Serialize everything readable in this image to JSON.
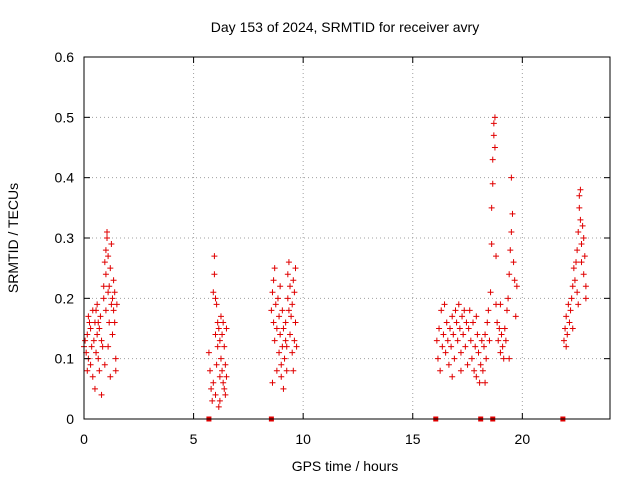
{
  "chart_data": {
    "type": "scatter",
    "title": "Day 153 of 2024, SRMTID for receiver avry",
    "xlabel": "GPS time / hours",
    "ylabel": "SRMTID / TECUs",
    "xlim": [
      0,
      24
    ],
    "ylim": [
      0,
      0.6
    ],
    "x_ticks": [
      0,
      5,
      10,
      15,
      20
    ],
    "x_tick_labels": [
      "0",
      "5",
      "10",
      "15",
      "20"
    ],
    "y_ticks": [
      0,
      0.1,
      0.2,
      0.3,
      0.4,
      0.5,
      0.6
    ],
    "y_tick_labels": [
      "0",
      "0.1",
      "0.2",
      "0.3",
      "0.4",
      "0.5",
      "0.6"
    ],
    "grid": true,
    "marker": "+",
    "color": "#e00000",
    "series": [
      {
        "name": "SRMTID",
        "points": [
          [
            0.0,
            0.12
          ],
          [
            0.05,
            0.13
          ],
          [
            0.1,
            0.11
          ],
          [
            0.15,
            0.14
          ],
          [
            0.2,
            0.1
          ],
          [
            0.2,
            0.17
          ],
          [
            0.25,
            0.16
          ],
          [
            0.3,
            0.09
          ],
          [
            0.3,
            0.15
          ],
          [
            0.35,
            0.12
          ],
          [
            0.4,
            0.18
          ],
          [
            0.4,
            0.07
          ],
          [
            0.45,
            0.13
          ],
          [
            0.5,
            0.16
          ],
          [
            0.5,
            0.05
          ],
          [
            0.55,
            0.11
          ],
          [
            0.6,
            0.14
          ],
          [
            0.6,
            0.19
          ],
          [
            0.65,
            0.1
          ],
          [
            0.7,
            0.15
          ],
          [
            0.7,
            0.08
          ],
          [
            0.75,
            0.17
          ],
          [
            0.8,
            0.13
          ],
          [
            0.8,
            0.04
          ],
          [
            0.85,
            0.12
          ],
          [
            0.9,
            0.2
          ],
          [
            0.9,
            0.22
          ],
          [
            0.95,
            0.26
          ],
          [
            1.0,
            0.28
          ],
          [
            1.0,
            0.18
          ],
          [
            1.0,
            0.24
          ],
          [
            1.05,
            0.3
          ],
          [
            1.05,
            0.31
          ],
          [
            1.1,
            0.27
          ],
          [
            1.1,
            0.21
          ],
          [
            1.15,
            0.16
          ],
          [
            1.15,
            0.22
          ],
          [
            1.2,
            0.25
          ],
          [
            1.2,
            0.07
          ],
          [
            1.25,
            0.19
          ],
          [
            1.25,
            0.29
          ],
          [
            1.3,
            0.2
          ],
          [
            1.3,
            0.14
          ],
          [
            1.35,
            0.18
          ],
          [
            1.35,
            0.23
          ],
          [
            1.4,
            0.16
          ],
          [
            1.4,
            0.21
          ],
          [
            1.45,
            0.1
          ],
          [
            1.45,
            0.08
          ],
          [
            1.5,
            0.19
          ],
          [
            0.15,
            0.08
          ],
          [
            0.55,
            0.18
          ],
          [
            0.65,
            0.16
          ],
          [
            0.95,
            0.09
          ],
          [
            1.1,
            0.12
          ],
          [
            5.7,
            0.11
          ],
          [
            5.75,
            0.08
          ],
          [
            5.8,
            0.05
          ],
          [
            5.85,
            0.03
          ],
          [
            5.9,
            0.06
          ],
          [
            5.9,
            0.21
          ],
          [
            5.95,
            0.27
          ],
          [
            5.95,
            0.24
          ],
          [
            6.0,
            0.14
          ],
          [
            6.0,
            0.04
          ],
          [
            6.05,
            0.19
          ],
          [
            6.05,
            0.09
          ],
          [
            6.1,
            0.16
          ],
          [
            6.1,
            0.12
          ],
          [
            6.15,
            0.15
          ],
          [
            6.15,
            0.02
          ],
          [
            6.2,
            0.13
          ],
          [
            6.2,
            0.07
          ],
          [
            6.25,
            0.17
          ],
          [
            6.25,
            0.1
          ],
          [
            6.3,
            0.08
          ],
          [
            6.3,
            0.14
          ],
          [
            6.35,
            0.06
          ],
          [
            6.35,
            0.16
          ],
          [
            6.4,
            0.05
          ],
          [
            6.4,
            0.12
          ],
          [
            6.45,
            0.04
          ],
          [
            6.45,
            0.09
          ],
          [
            6.5,
            0.07
          ],
          [
            6.5,
            0.15
          ],
          [
            6.0,
            0.2
          ],
          [
            6.2,
            0.03
          ],
          [
            8.55,
            0.18
          ],
          [
            8.6,
            0.21
          ],
          [
            8.6,
            0.06
          ],
          [
            8.65,
            0.23
          ],
          [
            8.65,
            0.16
          ],
          [
            8.7,
            0.25
          ],
          [
            8.7,
            0.13
          ],
          [
            8.75,
            0.19
          ],
          [
            8.8,
            0.15
          ],
          [
            8.8,
            0.08
          ],
          [
            8.85,
            0.2
          ],
          [
            8.9,
            0.11
          ],
          [
            8.9,
            0.17
          ],
          [
            8.95,
            0.14
          ],
          [
            9.0,
            0.09
          ],
          [
            9.0,
            0.07
          ],
          [
            9.05,
            0.12
          ],
          [
            9.05,
            0.18
          ],
          [
            9.1,
            0.05
          ],
          [
            9.1,
            0.15
          ],
          [
            9.15,
            0.1
          ],
          [
            9.2,
            0.13
          ],
          [
            9.2,
            0.16
          ],
          [
            9.25,
            0.12
          ],
          [
            9.3,
            0.2
          ],
          [
            9.3,
            0.24
          ],
          [
            9.35,
            0.26
          ],
          [
            9.35,
            0.18
          ],
          [
            9.4,
            0.22
          ],
          [
            9.4,
            0.14
          ],
          [
            9.45,
            0.17
          ],
          [
            9.5,
            0.19
          ],
          [
            9.5,
            0.11
          ],
          [
            9.55,
            0.08
          ],
          [
            9.55,
            0.23
          ],
          [
            9.6,
            0.13
          ],
          [
            9.65,
            0.16
          ],
          [
            9.6,
            0.21
          ],
          [
            9.65,
            0.25
          ],
          [
            9.7,
            0.12
          ],
          [
            8.95,
            0.22
          ],
          [
            9.25,
            0.08
          ],
          [
            16.1,
            0.13
          ],
          [
            16.15,
            0.1
          ],
          [
            16.2,
            0.15
          ],
          [
            16.25,
            0.08
          ],
          [
            16.3,
            0.18
          ],
          [
            16.35,
            0.12
          ],
          [
            16.4,
            0.14
          ],
          [
            16.45,
            0.19
          ],
          [
            16.5,
            0.11
          ],
          [
            16.55,
            0.16
          ],
          [
            16.6,
            0.13
          ],
          [
            16.65,
            0.09
          ],
          [
            16.7,
            0.15
          ],
          [
            16.75,
            0.12
          ],
          [
            16.8,
            0.17
          ],
          [
            16.85,
            0.14
          ],
          [
            16.9,
            0.1
          ],
          [
            16.95,
            0.18
          ],
          [
            17.0,
            0.16
          ],
          [
            17.05,
            0.13
          ],
          [
            17.1,
            0.19
          ],
          [
            17.15,
            0.15
          ],
          [
            17.2,
            0.11
          ],
          [
            17.25,
            0.17
          ],
          [
            17.3,
            0.14
          ],
          [
            17.35,
            0.18
          ],
          [
            17.4,
            0.12
          ],
          [
            17.45,
            0.16
          ],
          [
            17.5,
            0.09
          ],
          [
            17.55,
            0.15
          ],
          [
            17.6,
            0.18
          ],
          [
            17.65,
            0.13
          ],
          [
            17.7,
            0.1
          ],
          [
            17.75,
            0.16
          ],
          [
            17.8,
            0.08
          ],
          [
            17.85,
            0.12
          ],
          [
            17.9,
            0.07
          ],
          [
            17.95,
            0.14
          ],
          [
            18.0,
            0.11
          ],
          [
            18.05,
            0.06
          ],
          [
            18.1,
            0.09
          ],
          [
            18.15,
            0.13
          ],
          [
            18.2,
            0.08
          ],
          [
            18.25,
            0.12
          ],
          [
            18.3,
            0.14
          ],
          [
            18.35,
            0.1
          ],
          [
            18.4,
            0.16
          ],
          [
            18.45,
            0.18
          ],
          [
            18.5,
            0.13
          ],
          [
            18.55,
            0.21
          ],
          [
            18.6,
            0.29
          ],
          [
            18.6,
            0.35
          ],
          [
            18.65,
            0.39
          ],
          [
            18.65,
            0.43
          ],
          [
            18.7,
            0.47
          ],
          [
            18.7,
            0.49
          ],
          [
            18.75,
            0.5
          ],
          [
            18.75,
            0.45
          ],
          [
            18.8,
            0.27
          ],
          [
            18.8,
            0.19
          ],
          [
            18.85,
            0.16
          ],
          [
            18.9,
            0.13
          ],
          [
            18.95,
            0.15
          ],
          [
            19.0,
            0.11
          ],
          [
            19.05,
            0.14
          ],
          [
            19.1,
            0.12
          ],
          [
            19.15,
            0.1
          ],
          [
            19.2,
            0.15
          ],
          [
            19.25,
            0.13
          ],
          [
            19.3,
            0.18
          ],
          [
            19.35,
            0.2
          ],
          [
            19.4,
            0.24
          ],
          [
            19.45,
            0.28
          ],
          [
            19.5,
            0.31
          ],
          [
            19.5,
            0.4
          ],
          [
            19.55,
            0.34
          ],
          [
            19.6,
            0.26
          ],
          [
            19.65,
            0.23
          ],
          [
            19.7,
            0.17
          ],
          [
            19.75,
            0.22
          ],
          [
            16.8,
            0.07
          ],
          [
            17.2,
            0.08
          ],
          [
            17.9,
            0.17
          ],
          [
            18.3,
            0.06
          ],
          [
            19.0,
            0.19
          ],
          [
            19.4,
            0.1
          ],
          [
            21.9,
            0.13
          ],
          [
            21.95,
            0.15
          ],
          [
            22.0,
            0.17
          ],
          [
            22.05,
            0.14
          ],
          [
            22.1,
            0.19
          ],
          [
            22.15,
            0.16
          ],
          [
            22.2,
            0.18
          ],
          [
            22.25,
            0.2
          ],
          [
            22.3,
            0.22
          ],
          [
            22.35,
            0.25
          ],
          [
            22.4,
            0.23
          ],
          [
            22.45,
            0.26
          ],
          [
            22.5,
            0.21
          ],
          [
            22.5,
            0.28
          ],
          [
            22.55,
            0.31
          ],
          [
            22.6,
            0.35
          ],
          [
            22.6,
            0.37
          ],
          [
            22.65,
            0.38
          ],
          [
            22.65,
            0.33
          ],
          [
            22.7,
            0.29
          ],
          [
            22.7,
            0.26
          ],
          [
            22.75,
            0.32
          ],
          [
            22.8,
            0.3
          ],
          [
            22.8,
            0.24
          ],
          [
            22.85,
            0.27
          ],
          [
            22.9,
            0.22
          ],
          [
            22.9,
            0.2
          ],
          [
            22.0,
            0.12
          ],
          [
            22.3,
            0.15
          ],
          [
            22.55,
            0.19
          ]
        ]
      }
    ],
    "outages": [
      5.7,
      8.55,
      16.05,
      18.1,
      18.65,
      21.85
    ]
  }
}
